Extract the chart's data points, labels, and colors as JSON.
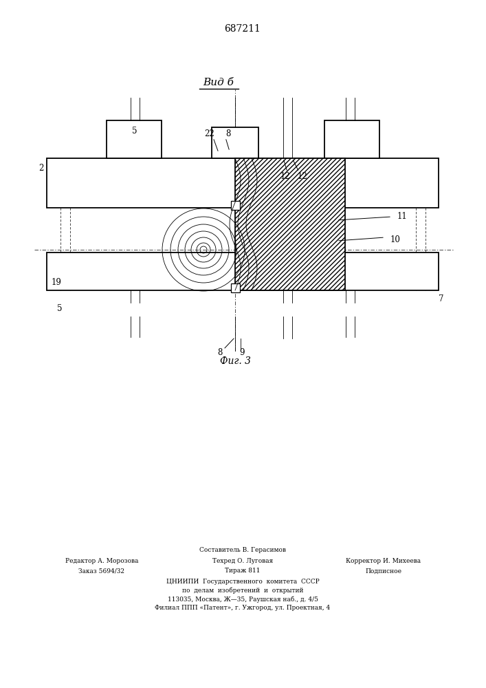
{
  "patent_number": "687211",
  "title": "Вид б",
  "fig_label": "Фиг. 3",
  "bg_color": "#ffffff",
  "line_color": "#000000",
  "footer_line1": "Составитель В. Герасимов",
  "footer_line2_left": "Редактор А. Морозова",
  "footer_line2_mid": "Техред О. Луговая",
  "footer_line2_right": "Корректор И. Михеева",
  "footer_line3_left": "Заказ 5694/32",
  "footer_line3_mid": "Тираж 811",
  "footer_line3_right": "Подписное",
  "footer_org": "ЦНИИПИ  Государственного  комитета  СССР",
  "footer_org2": "по  делам  изобретений  и  открытий",
  "footer_addr1": "113035, Москва, Ж—35, Раушская наб., д. 4/5",
  "footer_addr2": "Филиал ППП «Патент», г. Ужгород, ул. Проектная, 4"
}
